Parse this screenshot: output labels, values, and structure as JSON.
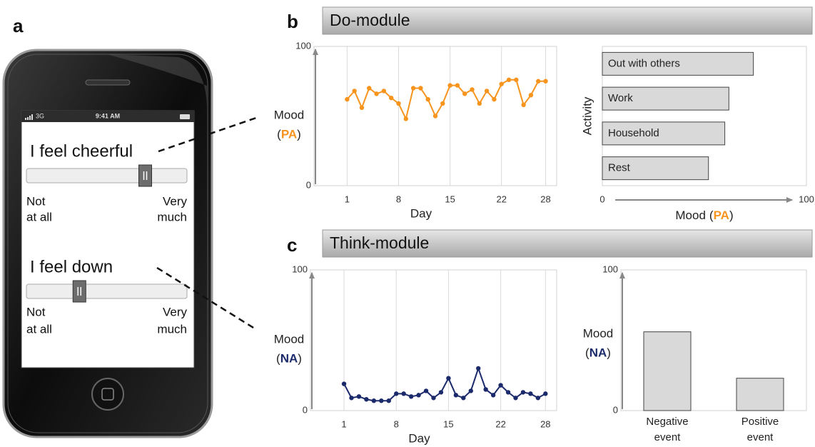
{
  "panel_labels": [
    "a",
    "b",
    "c"
  ],
  "modules": [
    "Do-module",
    "Think-module"
  ],
  "phone": {
    "status": {
      "carrier": "3G",
      "time": "9:41 AM"
    },
    "items": [
      {
        "prompt": "I feel cheerful",
        "slider_value": 74,
        "low": [
          "Not",
          "at all"
        ],
        "high": [
          "Very",
          "much"
        ]
      },
      {
        "prompt": "I feel down",
        "slider_value": 33,
        "low": [
          "Not",
          "at all"
        ],
        "high": [
          "Very",
          "much"
        ]
      }
    ]
  },
  "chart_data": [
    {
      "type": "line",
      "x": [
        1,
        2,
        3,
        4,
        5,
        6,
        7,
        8,
        9,
        10,
        11,
        12,
        13,
        14,
        15,
        16,
        17,
        18,
        19,
        20,
        21,
        22,
        23,
        24,
        25,
        26,
        27,
        28
      ],
      "values": [
        62,
        68,
        56,
        70,
        66,
        68,
        63,
        59,
        48,
        70,
        70,
        62,
        50,
        59,
        72,
        72,
        66,
        69,
        59,
        68,
        62,
        73,
        76,
        76,
        58,
        65,
        75,
        75
      ],
      "color": "#f7941d",
      "xlim": [
        -3.5,
        29.5
      ],
      "ylim": [
        0,
        100
      ],
      "xticks": [
        1,
        8,
        15,
        22,
        28
      ],
      "yticks": [
        0,
        100
      ],
      "grid": true,
      "xlabel": "Day",
      "ylabel": "Mood",
      "ylabel_tag": [
        "(",
        "PA",
        ")"
      ],
      "tag_color": "#f7941d"
    },
    {
      "type": "hbar",
      "categories": [
        "Out with others",
        "Work",
        "Household",
        "Rest"
      ],
      "values": [
        74,
        62,
        60,
        52
      ],
      "color": "#d9d9d9",
      "xlim": [
        0,
        100
      ],
      "xticks": [
        0,
        100
      ],
      "xlabel": "Mood",
      "xlabel_tag": [
        "(",
        "PA",
        ")"
      ],
      "tag_color": "#f7941d",
      "ylabel": "Activity"
    },
    {
      "type": "line",
      "x": [
        1,
        2,
        3,
        4,
        5,
        6,
        7,
        8,
        9,
        10,
        11,
        12,
        13,
        14,
        15,
        16,
        17,
        18,
        19,
        20,
        21,
        22,
        23,
        24,
        25,
        26,
        27,
        28
      ],
      "values": [
        19,
        9,
        10,
        8,
        7,
        7,
        7,
        12,
        12,
        10,
        11,
        14,
        9,
        13,
        23,
        11,
        9,
        14,
        30,
        15,
        11,
        18,
        13,
        9,
        13,
        12,
        9,
        12
      ],
      "color": "#1b2a6b",
      "xlim": [
        -3.5,
        29.5
      ],
      "ylim": [
        0,
        100
      ],
      "xticks": [
        1,
        8,
        15,
        22,
        28
      ],
      "yticks": [
        0,
        100
      ],
      "grid": true,
      "xlabel": "Day",
      "ylabel": "Mood",
      "ylabel_tag": [
        "(",
        "NA",
        ")"
      ],
      "tag_color": "#1b2a6b"
    },
    {
      "type": "bar",
      "categories": [
        "Negative event",
        "Positive event"
      ],
      "values": [
        56,
        23
      ],
      "color": "#d9d9d9",
      "ylim": [
        0,
        100
      ],
      "yticks": [
        0,
        100
      ],
      "ylabel": "Mood",
      "ylabel_tag": [
        "(",
        "NA",
        ")"
      ],
      "tag_color": "#1b2a6b"
    }
  ]
}
